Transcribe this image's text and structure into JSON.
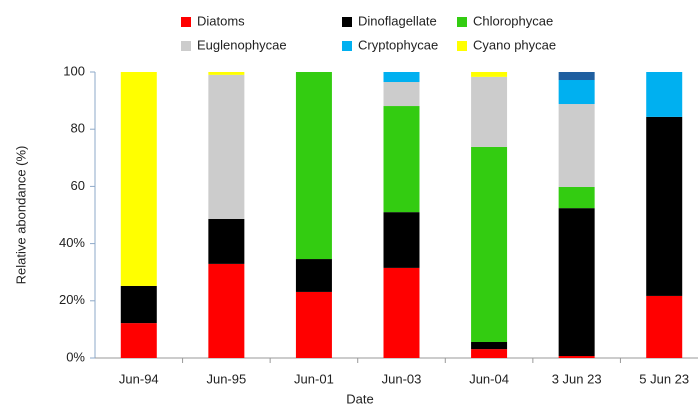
{
  "chart_data": {
    "type": "stacked_bar",
    "x_label": "Date",
    "y_label": "Relative abondance (%)",
    "categories": [
      "Jun-94",
      "Jun-95",
      "Jun-01",
      "Jun-03",
      "Jun-04",
      "3 Jun 23",
      "5 Jun 23"
    ],
    "series": [
      {
        "name": "Diatoms",
        "color": "#ff0000",
        "values": [
          12.2,
          32.9,
          23.1,
          31.5,
          3.1,
          0.7,
          21.7
        ]
      },
      {
        "name": "Dinoflagellate",
        "color": "#000000",
        "values": [
          13,
          15.7,
          11.5,
          19.5,
          2.5,
          51.7,
          62.6
        ]
      },
      {
        "name": "Chlorophycae",
        "color": "#33cc11",
        "values": [
          0,
          0,
          65.4,
          37.1,
          68.2,
          7.4,
          0
        ]
      },
      {
        "name": "Euglenophycae",
        "color": "#cccccc",
        "values": [
          0,
          50.4,
          0,
          8.4,
          24.5,
          29,
          0
        ]
      },
      {
        "name": "Cryptophycae",
        "color": "#00b0f0",
        "values": [
          0,
          0,
          0,
          3.5,
          0,
          8.4,
          15.7
        ]
      },
      {
        "name": "Cyano phycae",
        "color": "#ffff00",
        "values": [
          74.8,
          1,
          0,
          0,
          1.7,
          0,
          0
        ]
      },
      {
        "color": "#1f5fa0",
        "values": [
          0,
          0,
          0,
          0,
          0,
          2.8,
          0
        ]
      }
    ],
    "ylim": [
      0,
      100
    ],
    "yticks": [
      {
        "value": 0,
        "label": "0%"
      },
      {
        "value": 20,
        "label": "20%"
      },
      {
        "value": 40,
        "label": "40%"
      },
      60,
      80,
      100
    ]
  }
}
